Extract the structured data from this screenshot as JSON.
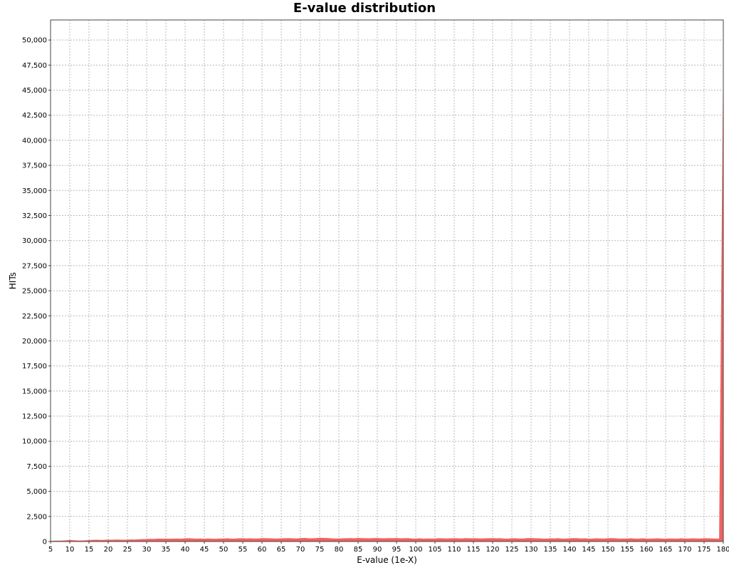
{
  "chart_data": {
    "type": "area",
    "title": "E-value distribution",
    "xlabel": "E-value (1e-X)",
    "ylabel": "HITs",
    "xlim": [
      5,
      180
    ],
    "ylim": [
      0,
      52000
    ],
    "x_ticks": [
      "5",
      "10",
      "15",
      "20",
      "25",
      "30",
      "35",
      "40",
      "45",
      "50",
      "55",
      "60",
      "65",
      "70",
      "75",
      "80",
      "85",
      "90",
      "95",
      "100",
      "105",
      "110",
      "115",
      "120",
      "125",
      "130",
      "135",
      "140",
      "145",
      "150",
      "155",
      "160",
      "165",
      "170",
      "175",
      "180"
    ],
    "y_ticks": [
      "0",
      "2,500",
      "5,000",
      "7,500",
      "10,000",
      "12,500",
      "15,000",
      "17,500",
      "20,000",
      "22,500",
      "25,000",
      "27,500",
      "30,000",
      "32,500",
      "35,000",
      "37,500",
      "40,000",
      "42,500",
      "45,000",
      "47,500",
      "50,000"
    ],
    "grid": true,
    "legend": "none",
    "color": "#f2625f",
    "series": [
      {
        "x": [
          5,
          6,
          7,
          8,
          9,
          10,
          11,
          12,
          13,
          14,
          15,
          16,
          17,
          18,
          19,
          20,
          21,
          22,
          23,
          24,
          25,
          26,
          27,
          28,
          29,
          30,
          31,
          32,
          33,
          34,
          35,
          36,
          37,
          38,
          39,
          40,
          41,
          42,
          43,
          44,
          45,
          46,
          47,
          48,
          49,
          50,
          51,
          52,
          53,
          54,
          55,
          56,
          57,
          58,
          59,
          60,
          61,
          62,
          63,
          64,
          65,
          66,
          67,
          68,
          69,
          70,
          71,
          72,
          73,
          74,
          75,
          76,
          77,
          78,
          79,
          80,
          81,
          82,
          83,
          84,
          85,
          86,
          87,
          88,
          89,
          90,
          91,
          92,
          93,
          94,
          95,
          96,
          97,
          98,
          99,
          100,
          101,
          102,
          103,
          104,
          105,
          106,
          107,
          108,
          109,
          110,
          111,
          112,
          113,
          114,
          115,
          116,
          117,
          118,
          119,
          120,
          121,
          122,
          123,
          124,
          125,
          126,
          127,
          128,
          129,
          130,
          131,
          132,
          133,
          134,
          135,
          136,
          137,
          138,
          139,
          140,
          141,
          142,
          143,
          144,
          145,
          146,
          147,
          148,
          149,
          150,
          151,
          152,
          153,
          154,
          155,
          156,
          157,
          158,
          159,
          160,
          161,
          162,
          163,
          164,
          165,
          166,
          167,
          168,
          169,
          170,
          171,
          172,
          173,
          174,
          175,
          176,
          177,
          178,
          179,
          180
        ],
        "y": [
          30,
          40,
          50,
          60,
          80,
          120,
          90,
          70,
          60,
          80,
          110,
          130,
          140,
          120,
          130,
          150,
          140,
          160,
          150,
          140,
          150,
          170,
          160,
          190,
          200,
          210,
          230,
          220,
          260,
          240,
          250,
          240,
          250,
          260,
          240,
          280,
          290,
          270,
          250,
          260,
          240,
          270,
          250,
          240,
          260,
          270,
          280,
          250,
          260,
          280,
          290,
          270,
          280,
          260,
          270,
          300,
          290,
          280,
          270,
          260,
          280,
          290,
          300,
          280,
          270,
          300,
          320,
          290,
          280,
          300,
          330,
          320,
          310,
          280,
          260,
          270,
          280,
          290,
          300,
          280,
          320,
          300,
          290,
          280,
          300,
          310,
          290,
          280,
          300,
          290,
          310,
          280,
          290,
          300,
          270,
          260,
          280,
          250,
          270,
          260,
          270,
          290,
          280,
          270,
          280,
          290,
          280,
          270,
          300,
          280,
          290,
          280,
          270,
          280,
          290,
          300,
          280,
          290,
          260,
          250,
          290,
          280,
          260,
          270,
          300,
          310,
          290,
          280,
          260,
          250,
          280,
          270,
          290,
          260,
          250,
          280,
          300,
          290,
          270,
          280,
          250,
          260,
          280,
          270,
          260,
          290,
          300,
          280,
          250,
          260,
          270,
          280,
          260,
          250,
          280,
          260,
          250,
          270,
          280,
          260,
          250,
          270,
          260,
          250,
          280,
          270,
          260,
          280,
          270,
          260,
          290,
          280,
          270,
          260,
          250,
          45500
        ]
      }
    ]
  }
}
